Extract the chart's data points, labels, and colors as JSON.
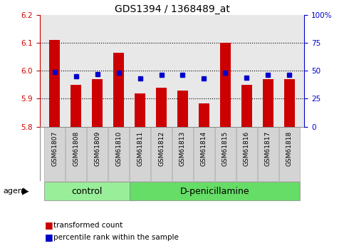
{
  "title": "GDS1394 / 1368489_at",
  "samples": [
    "GSM61807",
    "GSM61808",
    "GSM61809",
    "GSM61810",
    "GSM61811",
    "GSM61812",
    "GSM61813",
    "GSM61814",
    "GSM61815",
    "GSM61816",
    "GSM61817",
    "GSM61818"
  ],
  "red_values": [
    6.11,
    5.95,
    5.97,
    6.065,
    5.92,
    5.94,
    5.93,
    5.882,
    6.1,
    5.95,
    5.97,
    5.97
  ],
  "blue_pct": [
    49,
    45,
    47,
    48,
    43,
    46,
    46,
    43,
    48,
    44,
    46,
    46
  ],
  "ylim_left": [
    5.8,
    6.2
  ],
  "ylim_right": [
    0,
    100
  ],
  "yticks_left": [
    5.8,
    5.9,
    6.0,
    6.1,
    6.2
  ],
  "yticks_right": [
    0,
    25,
    50,
    75,
    100
  ],
  "ytick_labels_right": [
    "0",
    "25",
    "50",
    "75",
    "100%"
  ],
  "bar_color": "#cc0000",
  "blue_color": "#0000cc",
  "bar_bottom": 5.8,
  "control_n": 4,
  "treatment_n": 8,
  "control_label": "control",
  "treatment_label": "D-penicillamine",
  "agent_label": "agent",
  "legend_red": "transformed count",
  "legend_blue": "percentile rank within the sample",
  "background_color": "#ffffff",
  "panel_bg": "#e8e8e8",
  "sample_box_bg": "#d4d4d4",
  "control_bg": "#99ee99",
  "treatment_bg": "#66dd66",
  "title_fontsize": 10,
  "tick_fontsize": 7.5,
  "sample_fontsize": 6.5,
  "group_fontsize": 9
}
